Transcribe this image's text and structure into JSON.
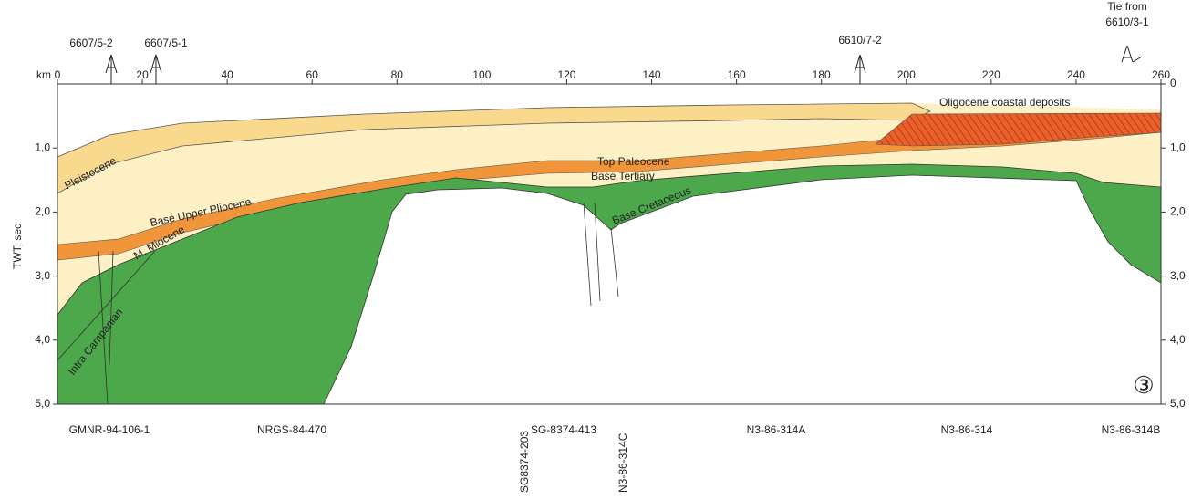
{
  "axes": {
    "x_unit": "km",
    "y_title": "TWT, sec",
    "top_ticks": [
      "0",
      "20",
      "40",
      "60",
      "80",
      "100",
      "120",
      "140",
      "160",
      "180",
      "200",
      "220",
      "240",
      "260"
    ],
    "left_ticks": [
      "1,0",
      "2,0",
      "3,0",
      "4,0",
      "5,0"
    ],
    "right_ticks": [
      "0",
      "1,0",
      "2,0",
      "3,0",
      "4,0",
      "5,0"
    ]
  },
  "wells": [
    {
      "label": "6607/5-2"
    },
    {
      "label": "6607/5-1"
    },
    {
      "label": "6610/7-2"
    },
    {
      "label": "Tie from",
      "label2": "6610/3-1"
    }
  ],
  "seismic_lines": [
    "GMNR-94-106-1",
    "NRGS-84-470",
    "SG8374-203",
    "SG-8374-413",
    "N3-86-314C",
    "N3-86-314A",
    "N3-86-314",
    "N3-86-314B"
  ],
  "horizons": [
    "Pleistocene",
    "Base Upper Pliocene",
    "M. Miocene",
    "Intra Campanian",
    "Top Paleocene",
    "Base Tertiary",
    "Base Cretaceous",
    "Oligocene coastal deposits"
  ],
  "panel_number": "③"
}
